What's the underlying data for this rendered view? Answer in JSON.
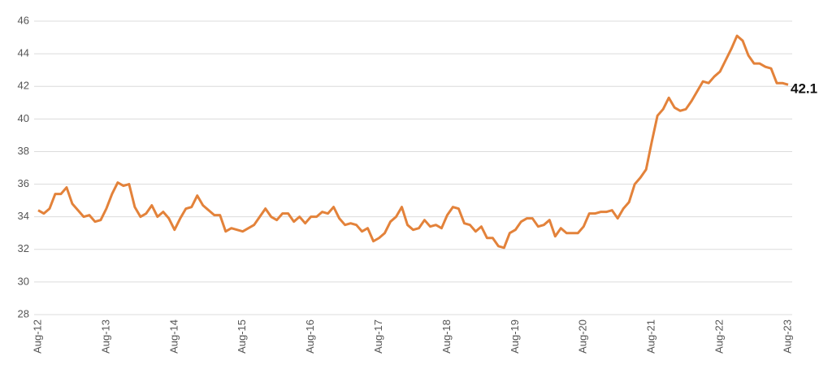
{
  "chart_data": {
    "type": "line",
    "categories": [
      "Aug-12",
      null,
      null,
      null,
      null,
      null,
      null,
      null,
      null,
      null,
      null,
      null,
      "Aug-13",
      null,
      null,
      null,
      null,
      null,
      null,
      null,
      null,
      null,
      null,
      null,
      "Aug-14",
      null,
      null,
      null,
      null,
      null,
      null,
      null,
      null,
      null,
      null,
      null,
      "Aug-15",
      null,
      null,
      null,
      null,
      null,
      null,
      null,
      null,
      null,
      null,
      null,
      "Aug-16",
      null,
      null,
      null,
      null,
      null,
      null,
      null,
      null,
      null,
      null,
      null,
      "Aug-17",
      null,
      null,
      null,
      null,
      null,
      null,
      null,
      null,
      null,
      null,
      null,
      "Aug-18",
      null,
      null,
      null,
      null,
      null,
      null,
      null,
      null,
      null,
      null,
      null,
      "Aug-19",
      null,
      null,
      null,
      null,
      null,
      null,
      null,
      null,
      null,
      null,
      null,
      "Aug-20",
      null,
      null,
      null,
      null,
      null,
      null,
      null,
      null,
      null,
      null,
      null,
      "Aug-21",
      null,
      null,
      null,
      null,
      null,
      null,
      null,
      null,
      null,
      null,
      null,
      "Aug-22",
      null,
      null,
      null,
      null,
      null,
      null,
      null,
      null,
      null,
      null,
      null,
      "Aug-23"
    ],
    "values": [
      34.4,
      34.2,
      34.5,
      35.4,
      35.4,
      35.8,
      34.8,
      34.4,
      34.0,
      34.1,
      33.7,
      33.8,
      34.5,
      35.4,
      36.1,
      35.9,
      36.0,
      34.6,
      34.0,
      34.2,
      34.7,
      34.0,
      34.3,
      33.9,
      33.2,
      33.9,
      34.5,
      34.6,
      35.3,
      34.7,
      34.4,
      34.1,
      34.1,
      33.1,
      33.3,
      33.2,
      33.1,
      33.3,
      33.5,
      34.0,
      34.5,
      34.0,
      33.8,
      34.2,
      34.2,
      33.7,
      34.0,
      33.6,
      34.0,
      34.0,
      34.3,
      34.2,
      34.6,
      33.9,
      33.5,
      33.6,
      33.5,
      33.1,
      33.3,
      32.5,
      32.7,
      33.0,
      33.7,
      34.0,
      34.6,
      33.5,
      33.2,
      33.3,
      33.8,
      33.4,
      33.5,
      33.3,
      34.1,
      34.6,
      34.5,
      33.6,
      33.5,
      33.1,
      33.4,
      32.7,
      32.7,
      32.2,
      32.1,
      33.0,
      33.2,
      33.7,
      33.9,
      33.9,
      33.4,
      33.5,
      33.8,
      32.8,
      33.3,
      33.0,
      33.0,
      33.0,
      33.4,
      34.2,
      34.2,
      34.3,
      34.3,
      34.4,
      33.9,
      34.5,
      34.9,
      36.0,
      36.4,
      36.9,
      38.6,
      40.2,
      40.6,
      41.3,
      40.7,
      40.5,
      40.6,
      41.1,
      41.7,
      42.3,
      42.2,
      42.6,
      42.9,
      43.6,
      44.3,
      45.1,
      44.8,
      43.9,
      43.4,
      43.4,
      43.2,
      43.1,
      42.2,
      42.2,
      42.1
    ],
    "color": "#e3823a",
    "ylim": [
      28,
      46
    ],
    "yticks": [
      28,
      30,
      32,
      34,
      36,
      38,
      40,
      42,
      44,
      46
    ],
    "grid": true
  }
}
